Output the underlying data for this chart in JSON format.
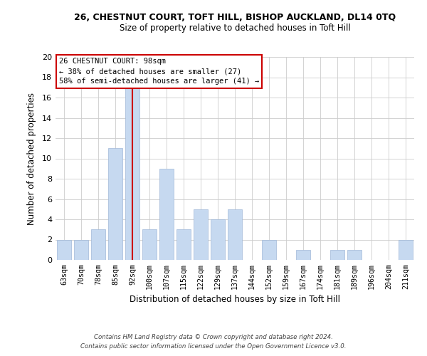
{
  "title_line1": "26, CHESTNUT COURT, TOFT HILL, BISHOP AUCKLAND, DL14 0TQ",
  "title_line2": "Size of property relative to detached houses in Toft Hill",
  "xlabel": "Distribution of detached houses by size in Toft Hill",
  "ylabel": "Number of detached properties",
  "categories": [
    "63sqm",
    "70sqm",
    "78sqm",
    "85sqm",
    "92sqm",
    "100sqm",
    "107sqm",
    "115sqm",
    "122sqm",
    "129sqm",
    "137sqm",
    "144sqm",
    "152sqm",
    "159sqm",
    "167sqm",
    "174sqm",
    "181sqm",
    "189sqm",
    "196sqm",
    "204sqm",
    "211sqm"
  ],
  "values": [
    2,
    2,
    3,
    11,
    17,
    3,
    9,
    3,
    5,
    4,
    5,
    0,
    2,
    0,
    1,
    0,
    1,
    1,
    0,
    0,
    2
  ],
  "bar_color": "#c6d9f0",
  "vline_color": "#cc0000",
  "vline_position": 4.5,
  "annotation_line1": "26 CHESTNUT COURT: 98sqm",
  "annotation_line2": "← 38% of detached houses are smaller (27)",
  "annotation_line3": "58% of semi-detached houses are larger (41) →",
  "ylim": [
    0,
    20
  ],
  "yticks": [
    0,
    2,
    4,
    6,
    8,
    10,
    12,
    14,
    16,
    18,
    20
  ],
  "footnote_line1": "Contains HM Land Registry data © Crown copyright and database right 2024.",
  "footnote_line2": "Contains public sector information licensed under the Open Government Licence v3.0.",
  "bg_color": "#ffffff",
  "grid_color": "#cccccc",
  "bar_edge_color": "#a0b8d8"
}
